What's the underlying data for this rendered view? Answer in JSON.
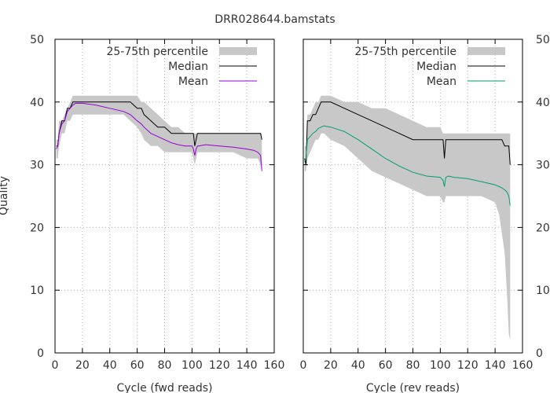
{
  "title": "DRR028644.bamstats",
  "ylabel": "Quality",
  "legend": {
    "band": "25-75th percentile",
    "median": "Median",
    "mean": "Mean"
  },
  "chart_data": [
    {
      "type": "line",
      "xlabel": "Cycle (fwd reads)",
      "ylabel": "Quality",
      "xlim": [
        0,
        160
      ],
      "ylim": [
        0,
        50
      ],
      "xticks": [
        "0",
        "20",
        "40",
        "60",
        "80",
        "100",
        "120",
        "140",
        "160"
      ],
      "yticks": [
        "0",
        "10",
        "20",
        "30",
        "40",
        "50"
      ],
      "grid": true,
      "legend_position": "top-right",
      "mean_color": "#9400d3",
      "band_color": "#c8c8c8",
      "median_color": "#000000",
      "x": [
        1,
        2,
        3,
        5,
        7,
        9,
        11,
        13,
        15,
        20,
        30,
        40,
        50,
        55,
        60,
        63,
        65,
        70,
        75,
        80,
        85,
        90,
        95,
        100,
        101,
        102,
        103,
        104,
        105,
        110,
        120,
        130,
        140,
        145,
        148,
        150,
        151
      ],
      "median": [
        33,
        33,
        35,
        37,
        37,
        39,
        39,
        40,
        40,
        40,
        40,
        40,
        40,
        40,
        39,
        39,
        38,
        37,
        36,
        36,
        35,
        35,
        35,
        35,
        35,
        33,
        34,
        35,
        35,
        35,
        35,
        35,
        35,
        35,
        35,
        35,
        34
      ],
      "mean": [
        32.5,
        33,
        35,
        36.5,
        37,
        38.5,
        39,
        39.5,
        39.8,
        39.8,
        39.5,
        39,
        38.5,
        38,
        37,
        36.5,
        36,
        35,
        34.5,
        34,
        33.5,
        33.2,
        33,
        33,
        32.5,
        31.5,
        32.5,
        33,
        33,
        33.2,
        33,
        32.8,
        32.5,
        32.3,
        32,
        31.5,
        29
      ],
      "q25": [
        31,
        31,
        33,
        35,
        35,
        37,
        37,
        38,
        38,
        38,
        38,
        38,
        38,
        37,
        36,
        35,
        34,
        33,
        33,
        32,
        32,
        32,
        32,
        32,
        31,
        30,
        31,
        32,
        32,
        32,
        32,
        32,
        31,
        31,
        31,
        30,
        29
      ],
      "q75": [
        34,
        34,
        37,
        37,
        38,
        39,
        40,
        41,
        41,
        41,
        41,
        41,
        41,
        41,
        41,
        40,
        40,
        39,
        38,
        37,
        36,
        36,
        35,
        35,
        35,
        35,
        35,
        35,
        35,
        35,
        35,
        35,
        35,
        35,
        35,
        35,
        35
      ]
    },
    {
      "type": "line",
      "xlabel": "Cycle (rev reads)",
      "ylabel": "Quality",
      "xlim": [
        0,
        160
      ],
      "ylim": [
        0,
        50
      ],
      "xticks": [
        "0",
        "20",
        "40",
        "60",
        "80",
        "100",
        "120",
        "140",
        "160"
      ],
      "yticks": [
        "0",
        "10",
        "20",
        "30",
        "40",
        "50"
      ],
      "grid": true,
      "legend_position": "top-right",
      "mean_color": "#009e73",
      "band_color": "#c8c8c8",
      "median_color": "#000000",
      "x": [
        1,
        2,
        3,
        5,
        7,
        9,
        11,
        13,
        15,
        20,
        30,
        40,
        50,
        60,
        70,
        80,
        90,
        100,
        102,
        103,
        104,
        106,
        110,
        120,
        130,
        140,
        143,
        145,
        147,
        148,
        149,
        150,
        151
      ],
      "median": [
        31,
        30,
        37,
        37,
        38,
        38,
        39,
        40,
        40,
        40,
        39,
        38,
        37,
        36,
        35,
        34,
        34,
        34,
        34,
        31,
        34,
        34,
        34,
        34,
        34,
        34,
        34,
        34,
        33,
        33,
        33,
        33,
        30
      ],
      "mean": [
        30.5,
        31,
        34,
        34.5,
        35,
        35.3,
        35.8,
        36,
        36.2,
        36,
        35.3,
        34,
        32.5,
        31,
        29.8,
        28.8,
        28.2,
        28,
        27.5,
        26.5,
        28,
        28.2,
        28,
        27.8,
        27.3,
        26.8,
        26.5,
        26.3,
        26,
        25.8,
        25.5,
        25,
        23.5
      ],
      "q25": [
        29,
        29,
        31,
        32,
        33,
        34,
        34,
        35,
        35,
        34,
        33,
        31,
        29,
        28,
        27,
        26,
        25,
        25,
        24,
        24,
        25,
        25,
        25,
        25,
        25,
        24,
        22,
        19,
        16,
        12,
        8,
        3,
        2
      ],
      "q75": [
        33,
        33,
        38,
        38,
        39,
        40,
        40,
        41,
        41,
        41,
        40,
        40,
        39,
        39,
        38,
        37,
        36,
        36,
        35,
        35,
        35,
        35,
        35,
        35,
        35,
        35,
        35,
        35,
        35,
        35,
        35,
        35,
        35
      ]
    }
  ]
}
